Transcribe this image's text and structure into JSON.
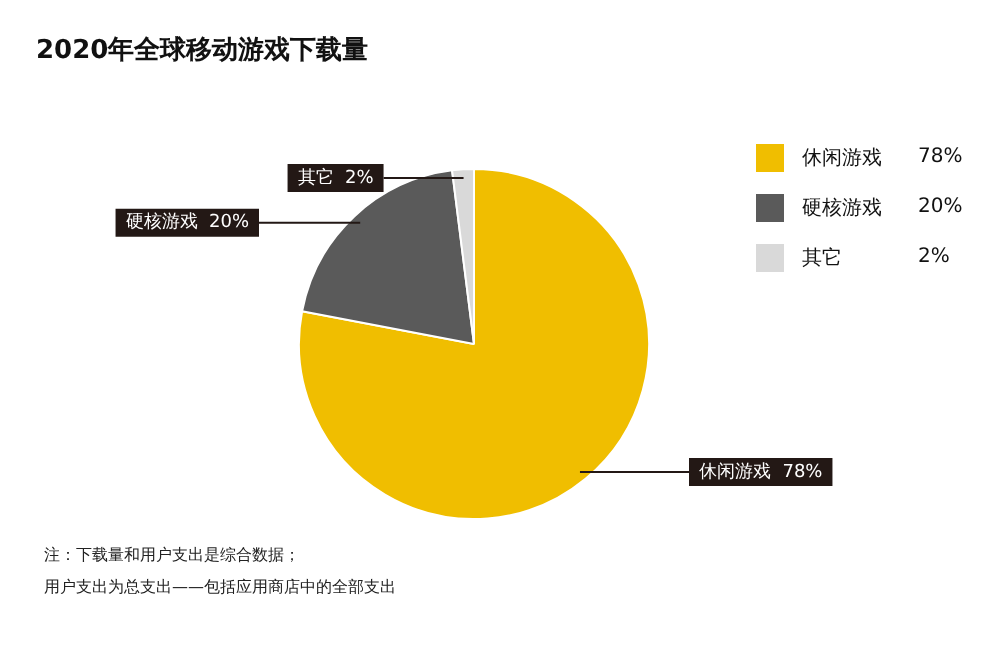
{
  "chart_data": {
    "type": "pie",
    "title": "2020年全球移动游戏下载量",
    "categories": [
      "休闲游戏",
      "硬核游戏",
      "其它"
    ],
    "values": [
      78,
      20,
      2
    ],
    "value_labels": [
      "78%",
      "20%",
      "2%"
    ],
    "colors": [
      "#f0be00",
      "#5a5a5a",
      "#d9d9d9"
    ],
    "legend": "right",
    "annotations": [
      "注：下载量和用户支出是综合数据；",
      "用户支出为总支出——包括应用商店中的全部支出"
    ]
  }
}
